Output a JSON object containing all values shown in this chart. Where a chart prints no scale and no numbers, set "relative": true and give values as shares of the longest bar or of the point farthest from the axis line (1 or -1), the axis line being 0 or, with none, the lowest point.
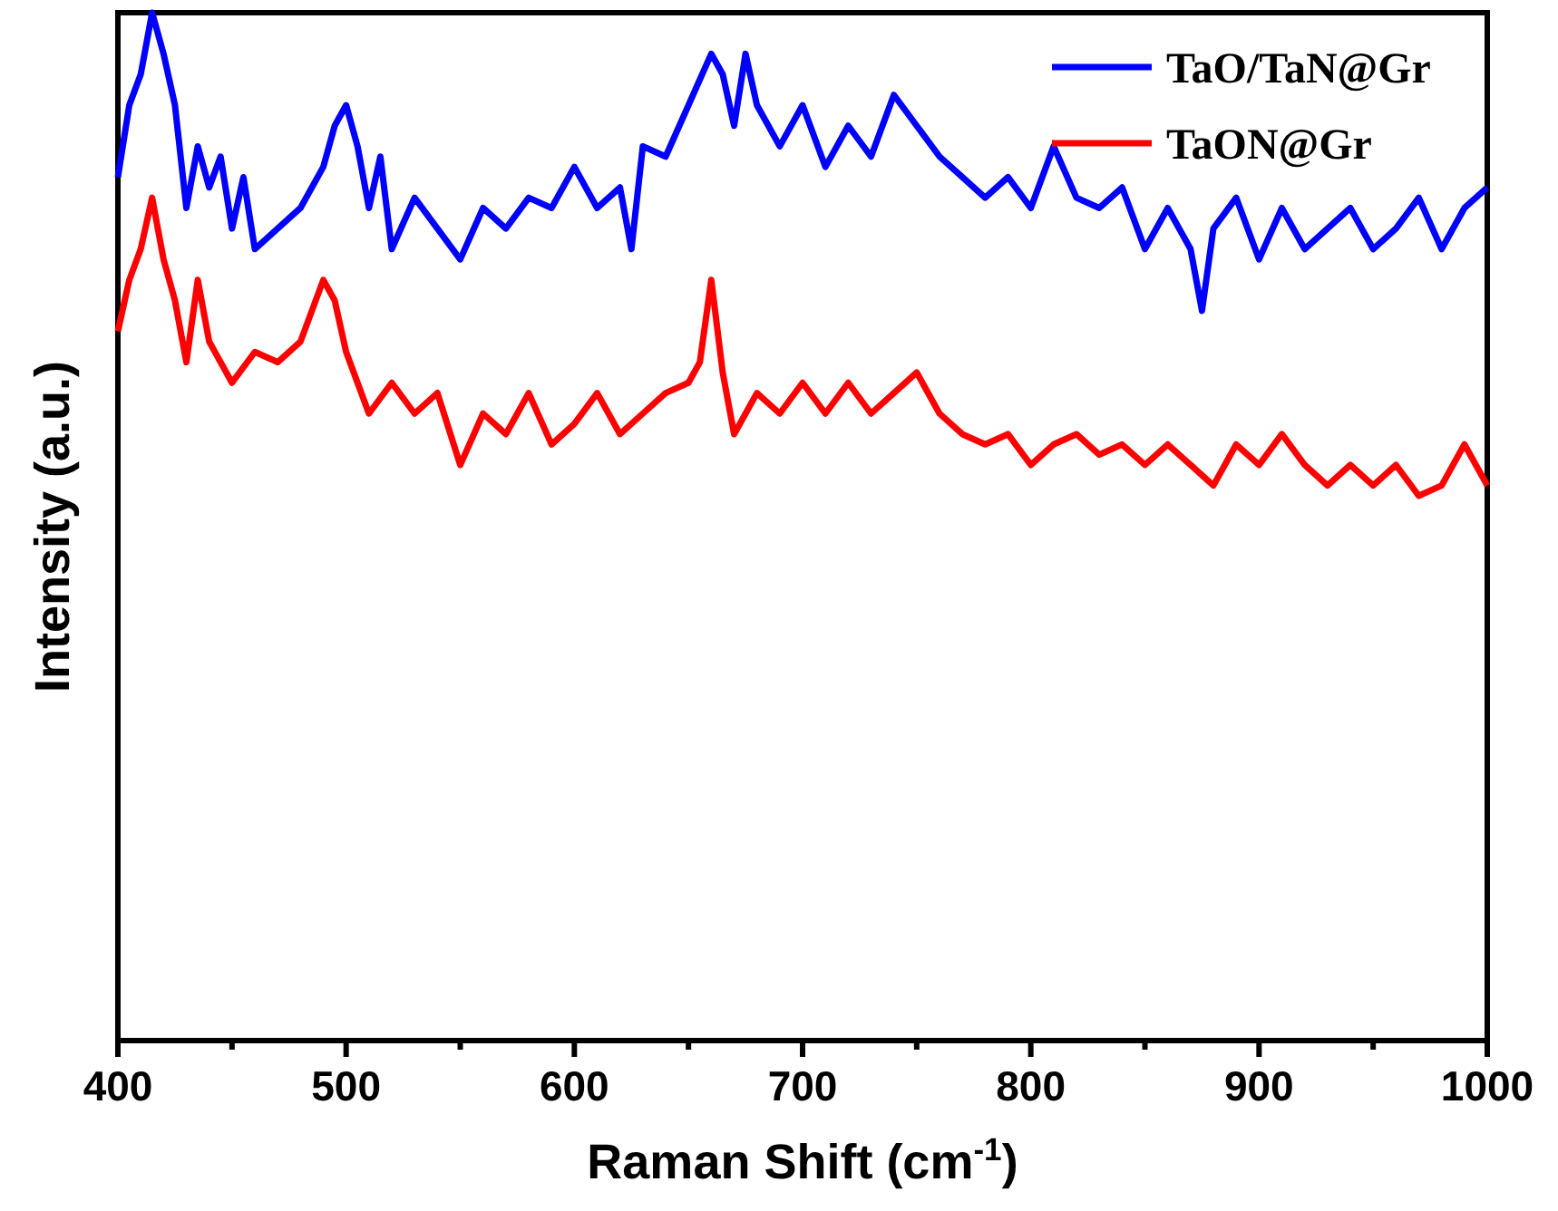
{
  "chart_data": {
    "type": "line",
    "relative": true,
    "xlabel": "Raman Shift (cm$^{-1}$)",
    "ylabel": "Intensity (a.u.)",
    "xlim": [
      400,
      1000
    ],
    "xticks": [
      400,
      {
        "value": 450,
        "label": null
      },
      500,
      {
        "value": 550,
        "label": null
      },
      600,
      {
        "value": 650,
        "label": null
      },
      700,
      {
        "value": 750,
        "label": null
      },
      800,
      {
        "value": 850,
        "label": null
      },
      900,
      {
        "value": 950,
        "label": null
      },
      1000
    ],
    "legend": "top right",
    "line_style": "solid",
    "marker": "none",
    "series": [
      {
        "name": "TaO/TaN@Gr",
        "color": "#0000ff",
        "x": [
          400,
          405,
          410,
          415,
          420,
          425,
          430,
          435,
          440,
          445,
          450,
          455,
          460,
          470,
          480,
          490,
          495,
          500,
          505,
          510,
          515,
          520,
          530,
          540,
          550,
          560,
          570,
          580,
          590,
          600,
          610,
          620,
          625,
          630,
          640,
          650,
          660,
          665,
          670,
          675,
          680,
          690,
          700,
          710,
          720,
          730,
          740,
          750,
          760,
          770,
          780,
          790,
          800,
          810,
          820,
          830,
          840,
          850,
          860,
          870,
          875,
          880,
          890,
          900,
          910,
          920,
          930,
          940,
          950,
          960,
          970,
          980,
          990,
          1000
        ],
        "values": [
          0.84,
          0.91,
          0.94,
          1,
          0.96,
          0.91,
          0.81,
          0.87,
          0.83,
          0.86,
          0.79,
          0.84,
          0.77,
          0.79,
          0.81,
          0.85,
          0.89,
          0.91,
          0.87,
          0.81,
          0.86,
          0.77,
          0.82,
          0.79,
          0.76,
          0.81,
          0.79,
          0.82,
          0.81,
          0.85,
          0.81,
          0.83,
          0.77,
          0.87,
          0.86,
          0.91,
          0.96,
          0.94,
          0.89,
          0.96,
          0.91,
          0.87,
          0.91,
          0.85,
          0.89,
          0.86,
          0.92,
          0.89,
          0.86,
          0.84,
          0.82,
          0.84,
          0.81,
          0.87,
          0.82,
          0.81,
          0.83,
          0.77,
          0.81,
          0.77,
          0.71,
          0.79,
          0.82,
          0.76,
          0.81,
          0.77,
          0.79,
          0.81,
          0.77,
          0.79,
          0.82,
          0.77,
          0.81,
          0.83
        ]
      },
      {
        "name": "TaON@Gr",
        "color": "#ff0000",
        "x": [
          400,
          405,
          410,
          415,
          420,
          425,
          430,
          435,
          440,
          450,
          460,
          470,
          480,
          490,
          495,
          500,
          510,
          520,
          530,
          540,
          550,
          560,
          570,
          580,
          590,
          600,
          610,
          620,
          630,
          640,
          650,
          655,
          660,
          665,
          670,
          680,
          690,
          700,
          710,
          720,
          730,
          740,
          750,
          760,
          770,
          780,
          790,
          800,
          810,
          820,
          830,
          840,
          850,
          860,
          870,
          880,
          890,
          900,
          910,
          920,
          930,
          940,
          950,
          960,
          970,
          980,
          990,
          1000
        ],
        "values": [
          0.69,
          0.74,
          0.77,
          0.82,
          0.76,
          0.72,
          0.66,
          0.74,
          0.68,
          0.64,
          0.67,
          0.66,
          0.68,
          0.74,
          0.72,
          0.67,
          0.61,
          0.64,
          0.61,
          0.63,
          0.56,
          0.61,
          0.59,
          0.63,
          0.58,
          0.6,
          0.63,
          0.59,
          0.61,
          0.63,
          0.64,
          0.66,
          0.74,
          0.65,
          0.59,
          0.63,
          0.61,
          0.64,
          0.61,
          0.64,
          0.61,
          0.63,
          0.65,
          0.61,
          0.59,
          0.58,
          0.59,
          0.56,
          0.58,
          0.59,
          0.57,
          0.58,
          0.56,
          0.58,
          0.56,
          0.54,
          0.58,
          0.56,
          0.59,
          0.56,
          0.54,
          0.56,
          0.54,
          0.56,
          0.53,
          0.54,
          0.58,
          0.54
        ]
      }
    ]
  }
}
